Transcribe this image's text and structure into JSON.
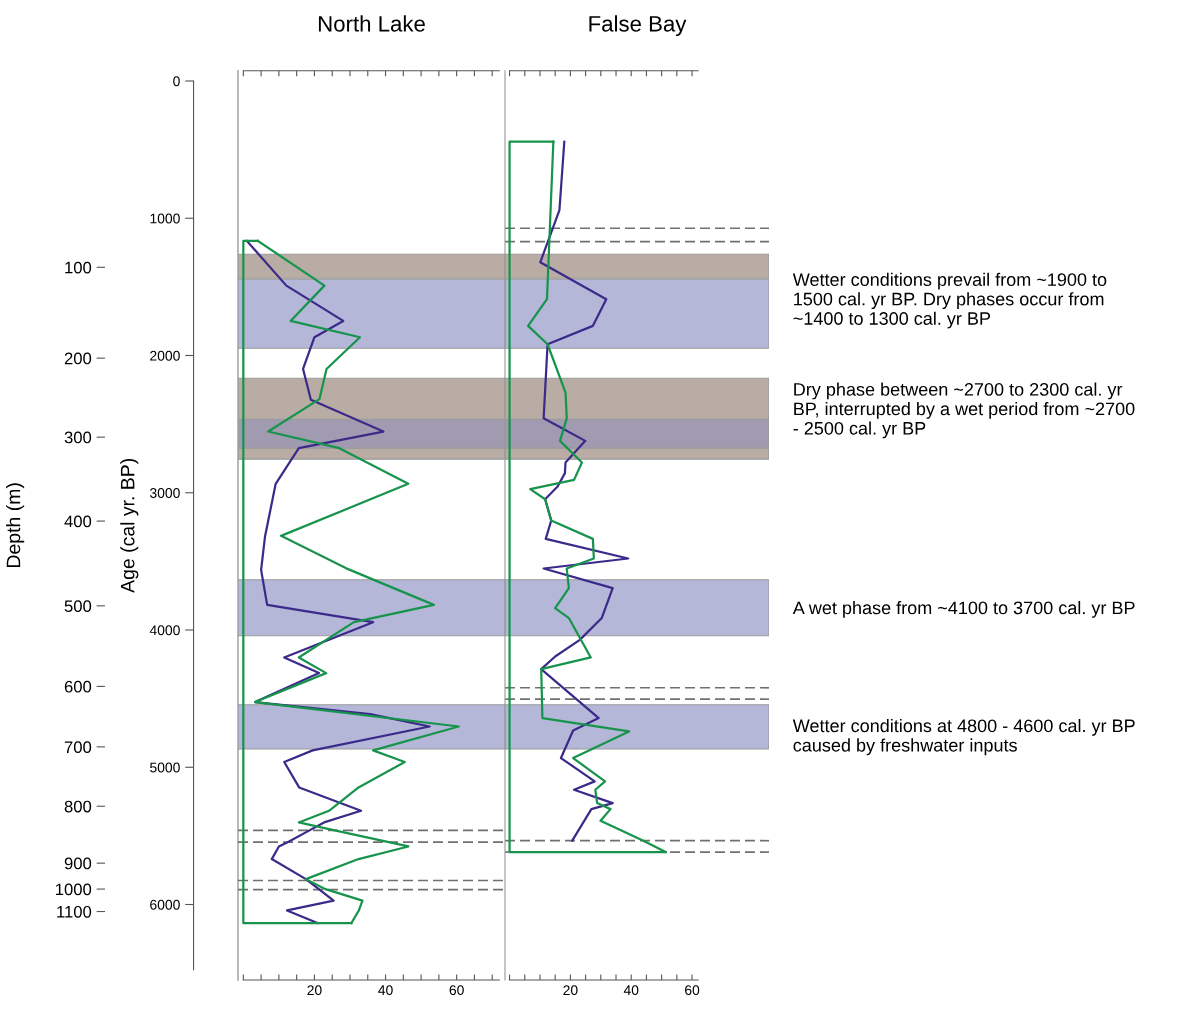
{
  "chart_data": [
    {
      "type": "line",
      "title": "North Lake",
      "ylabel": "Age (cal yr. BP)",
      "y3label": "Depth (m)",
      "xlim": [
        -1.5,
        73.6
      ],
      "ylim": [
        6550,
        -75
      ],
      "xticks": [
        {
          "value": 0,
          "label": null
        },
        {
          "value": 5,
          "label": null
        },
        {
          "value": 10,
          "label": null
        },
        {
          "value": 15,
          "label": null
        },
        20,
        {
          "value": 25,
          "label": null
        },
        {
          "value": 30,
          "label": null
        },
        {
          "value": 35,
          "label": null
        },
        40,
        {
          "value": 45,
          "label": null
        },
        {
          "value": 50,
          "label": null
        },
        {
          "value": 55,
          "label": null
        },
        60,
        {
          "value": 65,
          "label": null
        },
        {
          "value": 70,
          "label": null
        }
      ],
      "yticks": [
        0,
        1000,
        2000,
        3000,
        4000,
        5000,
        6000
      ],
      "annotations": [
        "100",
        "200",
        "300",
        "400",
        "500",
        "600",
        "700",
        "800",
        "900",
        "1000",
        "1100"
      ],
      "grid": false,
      "legend": false,
      "marker": "none",
      "line_style": "solid",
      "series": [
        {
          "color": "#3b2a8a",
          "x": [
            1.0,
            12.1,
            28.1,
            20.0,
            16.8,
            19.0,
            39.4,
            15.6,
            9.1,
            6.1,
            5.0,
            6.7,
            36.5,
            11.5,
            21.3,
            3.3,
            35.7,
            52.4,
            19.5,
            11.5,
            15.7,
            33.1,
            22.7,
            18.6,
            12.6,
            10.0,
            8.0,
            17.6,
            25.4,
            12.3,
            20.9
          ],
          "values": [
            1165,
            1491,
            1748,
            1867,
            2098,
            2323,
            2554,
            2675,
            2935,
            3319,
            3562,
            3817,
            3943,
            4200,
            4314,
            4525,
            4613,
            4703,
            4877,
            4962,
            5147,
            5317,
            5402,
            5460,
            5545,
            5577,
            5669,
            5815,
            5972,
            6043,
            6135
          ]
        },
        {
          "color": "#17944c",
          "x": [
            4.1,
            22.8,
            13.3,
            32.8,
            23.4,
            21.4,
            7.0,
            27.0,
            46.4,
            10.6,
            28.8,
            53.6,
            31.1,
            15.6,
            23.3,
            3.3,
            60.6,
            36.5,
            45.4,
            32.4,
            24.1,
            15.6,
            25.7,
            46.4,
            32.4,
            17.6,
            23.1,
            33.5,
            32.5,
            30.4
          ],
          "values": [
            1165,
            1491,
            1748,
            1867,
            2098,
            2318,
            2554,
            2675,
            2935,
            3314,
            3549,
            3817,
            3943,
            4200,
            4314,
            4525,
            4703,
            4877,
            4962,
            5147,
            5317,
            5402,
            5460,
            5577,
            5669,
            5815,
            5888,
            5972,
            6043,
            6135
          ]
        },
        {
          "color": "#17944c",
          "x": [
            4.1,
            0,
            0,
            30.4
          ],
          "values": [
            1165,
            1165,
            6135,
            6135
          ]
        }
      ],
      "bands": [
        {
          "axis": "y",
          "from": 1262,
          "to": 1437,
          "color": "#b8aca4"
        },
        {
          "axis": "y",
          "from": 1444,
          "to": 1947,
          "color": "#b4b7d8"
        },
        {
          "axis": "y",
          "from": 2166,
          "to": 2755,
          "color": "#b8aca4"
        },
        {
          "axis": "y",
          "from": 2464,
          "to": 2675,
          "color": "#a09bb0"
        },
        {
          "axis": "y",
          "from": 3634,
          "to": 4042,
          "color": "#b4b7d8"
        },
        {
          "axis": "y",
          "from": 4545,
          "to": 4867,
          "color": "#b4b7d8"
        }
      ],
      "ref_lines": [
        {
          "axis": "y",
          "value": 5460,
          "color": "#707070",
          "line_style": "dashed"
        },
        {
          "axis": "y",
          "value": 5545,
          "color": "#707070",
          "line_style": "dashed"
        },
        {
          "axis": "y",
          "value": 5825,
          "color": "#707070",
          "line_style": "dashed"
        },
        {
          "axis": "y",
          "value": 5892,
          "color": "#707070",
          "line_style": "dashed"
        }
      ]
    },
    {
      "type": "line",
      "title": "False Bay",
      "tick_labels": "x",
      "xlim": [
        -1.5,
        85.3
      ],
      "ylim": [
        6550,
        -75
      ],
      "xticks": [
        {
          "value": 0,
          "label": null
        },
        {
          "value": 5,
          "label": null
        },
        {
          "value": 10,
          "label": null
        },
        {
          "value": 15,
          "label": null
        },
        20,
        {
          "value": 25,
          "label": null
        },
        {
          "value": 30,
          "label": null
        },
        {
          "value": 35,
          "label": null
        },
        40,
        {
          "value": 45,
          "label": null
        },
        {
          "value": 50,
          "label": null
        },
        {
          "value": 55,
          "label": null
        },
        60
      ],
      "grid": false,
      "legend": false,
      "marker": "none",
      "line_style": "solid",
      "series": [
        {
          "color": "#3b2a8a",
          "x": [
            18.0,
            16.4,
            10.1,
            31.8,
            27.4,
            12.5,
            11.2,
            24.9,
            18.4,
            18.2,
            15.8,
            11.7,
            13.7,
            11.9,
            39.0,
            11.2,
            33.9,
            30.3,
            23.1,
            15.0,
            10.4,
            29.3,
            20.9,
            16.9,
            28.0,
            21.2,
            33.9,
            26.9,
            20.6
          ],
          "values": [
            442,
            940,
            1321,
            1590,
            1784,
            1918,
            2457,
            2622,
            2780,
            2857,
            2955,
            3047,
            3202,
            3336,
            3479,
            3552,
            3695,
            3913,
            4072,
            4193,
            4285,
            4642,
            4732,
            4933,
            5103,
            5164,
            5261,
            5305,
            5535
          ]
        },
        {
          "color": "#17944c",
          "x": [
            14.4,
            12.3,
            6.1,
            12.5,
            18.4,
            18.8,
            16.6,
            23.8,
            21.2,
            6.8,
            11.7,
            13.7,
            27.4,
            27.7,
            18.8,
            19.5,
            15.0,
            19.5,
            26.7,
            10.4,
            10.8,
            39.3,
            20.9,
            31.4,
            28.2,
            28.8,
            33.2,
            29.9,
            44.0,
            51.3
          ],
          "values": [
            442,
            1590,
            1784,
            1918,
            2270,
            2457,
            2622,
            2780,
            2906,
            2974,
            3047,
            3202,
            3336,
            3479,
            3552,
            3695,
            3841,
            3913,
            4200,
            4285,
            4642,
            4739,
            4933,
            5103,
            5164,
            5261,
            5305,
            5390,
            5535,
            5618
          ]
        },
        {
          "color": "#17944c",
          "x": [
            14.4,
            0,
            0,
            51.3
          ],
          "values": [
            442,
            442,
            5618,
            5618
          ]
        }
      ],
      "bands": [
        {
          "axis": "y",
          "from": 1262,
          "to": 1437,
          "color": "#b8aca4"
        },
        {
          "axis": "y",
          "from": 1444,
          "to": 1947,
          "color": "#b4b7d8"
        },
        {
          "axis": "y",
          "from": 2166,
          "to": 2755,
          "color": "#b8aca4"
        },
        {
          "axis": "y",
          "from": 2464,
          "to": 2675,
          "color": "#a09bb0"
        },
        {
          "axis": "y",
          "from": 3634,
          "to": 4042,
          "color": "#b4b7d8"
        },
        {
          "axis": "y",
          "from": 4545,
          "to": 4867,
          "color": "#b4b7d8"
        }
      ],
      "ref_lines": [
        {
          "axis": "y",
          "value": 1073,
          "color": "#707070",
          "line_style": "dashed"
        },
        {
          "axis": "y",
          "value": 1170,
          "color": "#707070",
          "line_style": "dashed"
        },
        {
          "axis": "y",
          "value": 4421,
          "color": "#707070",
          "line_style": "dashed"
        },
        {
          "axis": "y",
          "value": 4504,
          "color": "#707070",
          "line_style": "dashed"
        },
        {
          "axis": "y",
          "value": 5535,
          "color": "#707070",
          "line_style": "dashed"
        },
        {
          "axis": "y",
          "value": 5618,
          "color": "#707070",
          "line_style": "dashed"
        }
      ],
      "annotations": [
        "Wetter conditions prevail from ~1900 to\n1500 cal. yr BP. Dry phases occur from\n~1400 to 1300 cal. yr BP",
        "Dry phase between ~2700 to 2300 cal. yr\nBP, interrupted by a wet period from ~2700\n- 2500 cal. yr BP",
        "A wet phase from ~4100 to 3700 cal. yr BP",
        "Wetter conditions at 4800 - 4600 cal. yr BP\ncaused by freshwater inputs"
      ]
    }
  ]
}
